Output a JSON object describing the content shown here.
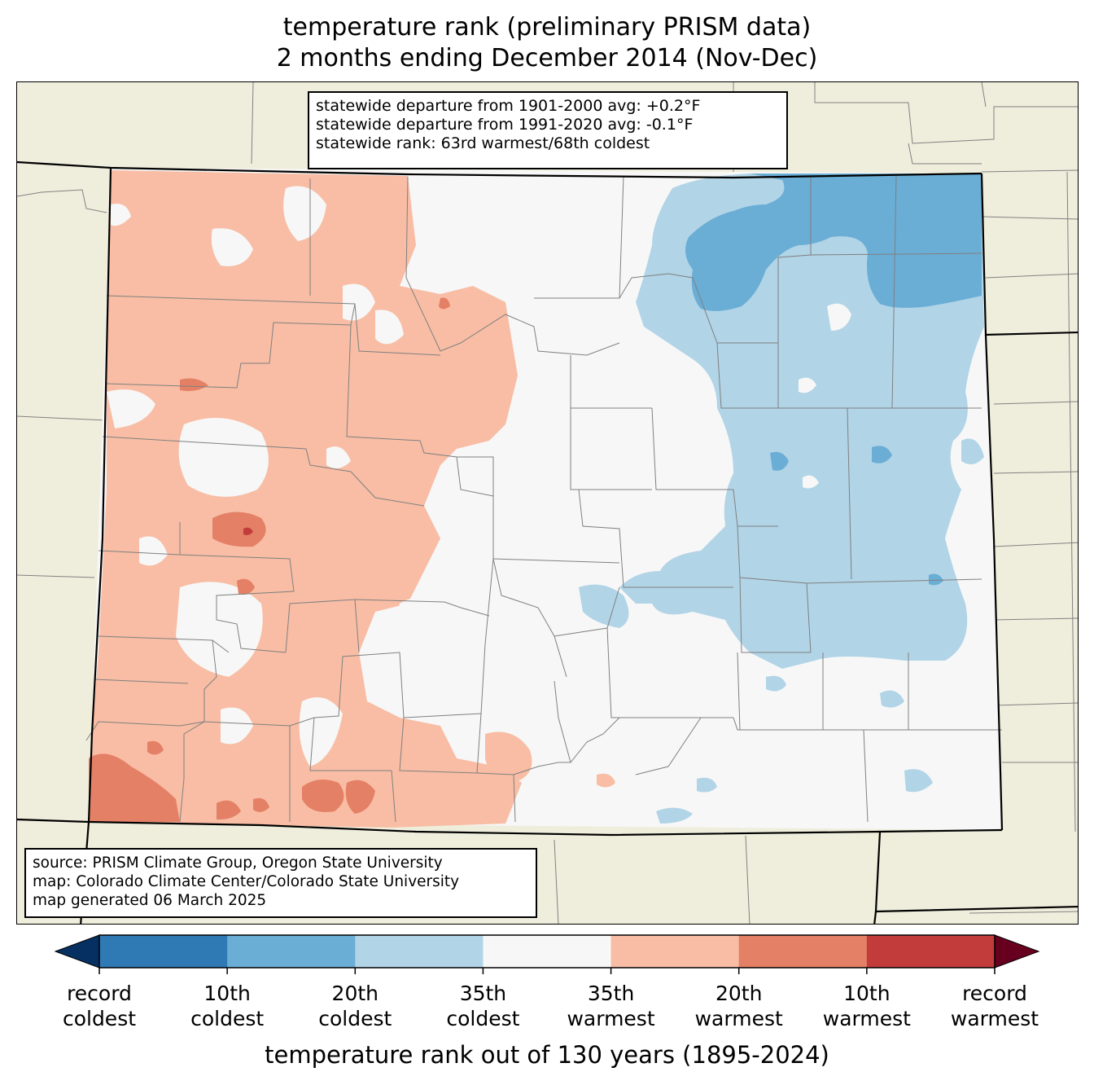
{
  "title": {
    "line1": "temperature rank (preliminary PRISM data)",
    "line2": "2 months ending December 2014 (Nov-Dec)"
  },
  "stats": {
    "line1": "statewide departure from 1901-2000 avg: +0.2°F",
    "line2": "statewide departure from 1991-2020 avg: -0.1°F",
    "line3": "statewide rank: 63rd warmest/68th coldest"
  },
  "source": {
    "line1": "source: PRISM Climate Group, Oregon State University",
    "line2": "map: Colorado Climate Center/Colorado State University",
    "line3": "map generated 06 March 2025"
  },
  "colors": {
    "land": "#efeedd",
    "neutral": "#f7f7f7",
    "warm35": "#f8bda4",
    "warm20": "#e48066",
    "warm10": "#c33c3c",
    "record_warm": "#67001f",
    "cold35": "#b1d4e7",
    "cold20": "#6aadd5",
    "cold10": "#2f79b5",
    "record_cold": "#053061"
  },
  "colorbar": {
    "title": "temperature rank out of 130 years (1895-2024)",
    "segments": [
      "#2f79b5",
      "#6aadd5",
      "#b1d4e7",
      "#f7f7f7",
      "#f8bda4",
      "#e48066",
      "#c33c3c"
    ],
    "left_extension": "#053061",
    "right_extension": "#67001f",
    "ticks": [
      {
        "line1": "record",
        "line2": "coldest"
      },
      {
        "line1": "10th",
        "line2": "coldest"
      },
      {
        "line1": "20th",
        "line2": "coldest"
      },
      {
        "line1": "35th",
        "line2": "coldest"
      },
      {
        "line1": "35th",
        "line2": "warmest"
      },
      {
        "line1": "20th",
        "line2": "warmest"
      },
      {
        "line1": "10th",
        "line2": "warmest"
      },
      {
        "line1": "record",
        "line2": "warmest"
      }
    ]
  }
}
